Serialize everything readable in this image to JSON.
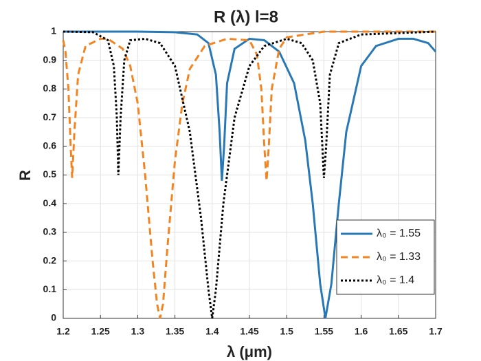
{
  "chart_data": {
    "type": "line",
    "title": "R (λ)  l=8",
    "xlabel": "λ (μm)",
    "ylabel": "R",
    "xlim": [
      1.2,
      1.7
    ],
    "xticks": [
      1.2,
      1.25,
      1.3,
      1.35,
      1.4,
      1.45,
      1.5,
      1.55,
      1.6,
      1.65,
      1.7
    ],
    "ylim": [
      0,
      1
    ],
    "yticks": [
      0,
      0.1,
      0.2,
      0.3,
      0.4,
      0.5,
      0.6,
      0.7,
      0.8,
      0.9,
      1
    ],
    "grid": true,
    "legend": "lower right",
    "series": [
      {
        "name": "λ₀ = 1.55",
        "color": "#2878b5",
        "style": "solid",
        "x": [
          1.2,
          1.3,
          1.35,
          1.38,
          1.395,
          1.405,
          1.41,
          1.413,
          1.416,
          1.42,
          1.43,
          1.45,
          1.47,
          1.49,
          1.51,
          1.525,
          1.535,
          1.545,
          1.552,
          1.56,
          1.57,
          1.58,
          1.6,
          1.62,
          1.65,
          1.67,
          1.69,
          1.7
        ],
        "values": [
          1,
          1,
          0.998,
          0.99,
          0.96,
          0.85,
          0.65,
          0.48,
          0.6,
          0.82,
          0.94,
          0.975,
          0.97,
          0.93,
          0.82,
          0.62,
          0.4,
          0.12,
          0,
          0.12,
          0.4,
          0.65,
          0.88,
          0.95,
          0.975,
          0.975,
          0.96,
          0.93
        ]
      },
      {
        "name": "λ₀ = 1.33",
        "color": "#f28522",
        "style": "dashed",
        "x": [
          1.2,
          1.203,
          1.207,
          1.21,
          1.212,
          1.215,
          1.22,
          1.23,
          1.25,
          1.26,
          1.28,
          1.29,
          1.3,
          1.31,
          1.32,
          1.326,
          1.33,
          1.334,
          1.34,
          1.35,
          1.36,
          1.37,
          1.39,
          1.42,
          1.45,
          1.46,
          1.466,
          1.47,
          1.473,
          1.476,
          1.48,
          1.49,
          1.5,
          1.55,
          1.7
        ],
        "values": [
          0.97,
          0.93,
          0.8,
          0.6,
          0.49,
          0.65,
          0.85,
          0.95,
          0.975,
          0.975,
          0.94,
          0.88,
          0.75,
          0.5,
          0.2,
          0.05,
          0,
          0.05,
          0.25,
          0.55,
          0.75,
          0.87,
          0.95,
          0.975,
          0.97,
          0.92,
          0.8,
          0.6,
          0.48,
          0.6,
          0.8,
          0.94,
          0.98,
          1,
          1
        ]
      },
      {
        "name": "λ₀ = 1.4",
        "color": "#000000",
        "style": "dotted",
        "x": [
          1.2,
          1.24,
          1.26,
          1.268,
          1.272,
          1.274,
          1.277,
          1.282,
          1.29,
          1.31,
          1.33,
          1.35,
          1.37,
          1.385,
          1.395,
          1.4,
          1.405,
          1.415,
          1.43,
          1.45,
          1.47,
          1.5,
          1.52,
          1.535,
          1.545,
          1.55,
          1.553,
          1.558,
          1.57,
          1.6,
          1.7
        ],
        "values": [
          1,
          0.998,
          0.97,
          0.88,
          0.7,
          0.5,
          0.7,
          0.9,
          0.97,
          0.975,
          0.96,
          0.88,
          0.65,
          0.35,
          0.1,
          0,
          0.1,
          0.4,
          0.7,
          0.88,
          0.95,
          0.975,
          0.96,
          0.9,
          0.75,
          0.49,
          0.6,
          0.85,
          0.96,
          0.99,
          1
        ]
      }
    ]
  }
}
